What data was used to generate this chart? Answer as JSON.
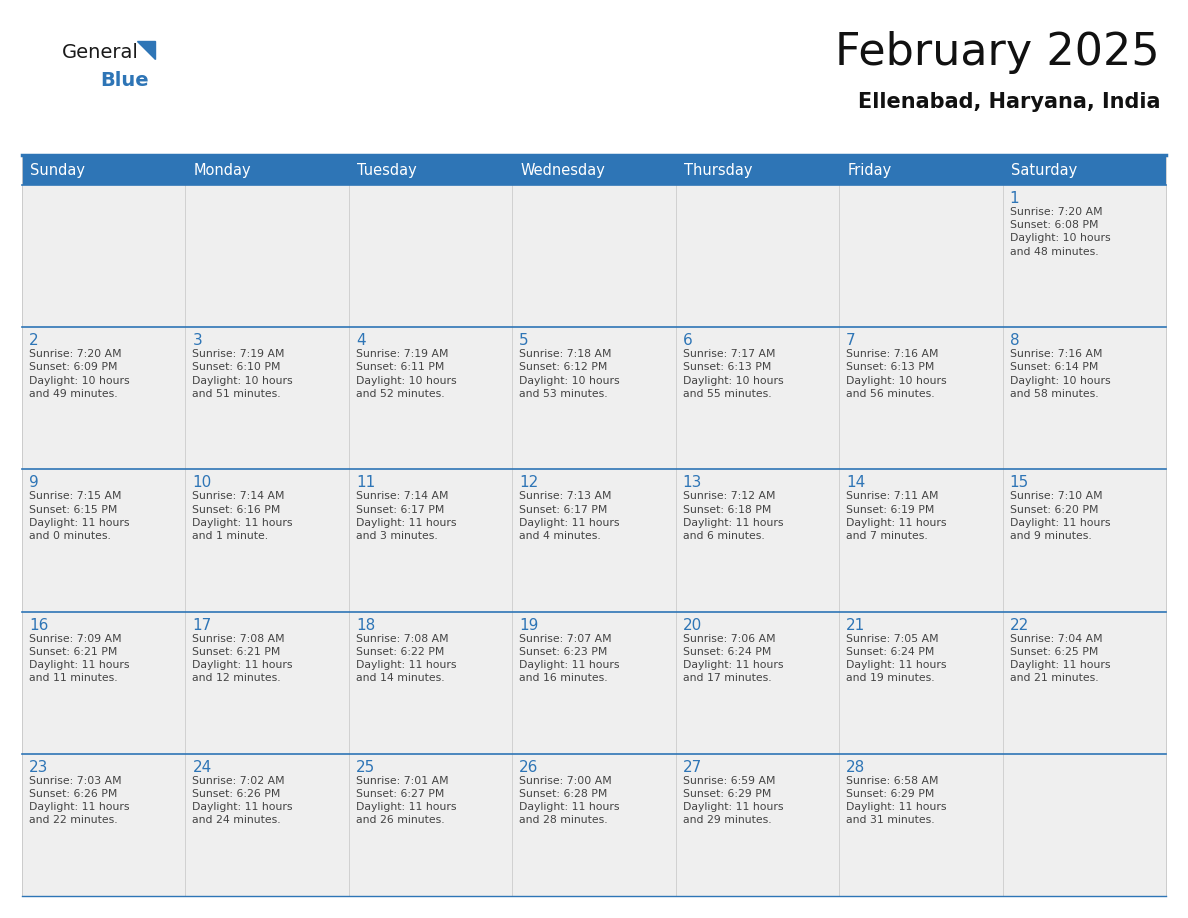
{
  "title": "February 2025",
  "subtitle": "Ellenabad, Haryana, India",
  "header_bg": "#2E75B6",
  "header_text_color": "#FFFFFF",
  "cell_bg_odd": "#EFEFEF",
  "cell_bg_even": "#FFFFFF",
  "day_number_color": "#2E75B6",
  "info_text_color": "#444444",
  "border_color": "#2E75B6",
  "sep_line_color": "#2E75B6",
  "inner_line_color": "#CCCCCC",
  "days_of_week": [
    "Sunday",
    "Monday",
    "Tuesday",
    "Wednesday",
    "Thursday",
    "Friday",
    "Saturday"
  ],
  "calendar_data": [
    [
      null,
      null,
      null,
      null,
      null,
      null,
      {
        "day": "1",
        "sunrise": "7:20 AM",
        "sunset": "6:08 PM",
        "daylight": "10 hours\nand 48 minutes."
      }
    ],
    [
      {
        "day": "2",
        "sunrise": "7:20 AM",
        "sunset": "6:09 PM",
        "daylight": "10 hours\nand 49 minutes."
      },
      {
        "day": "3",
        "sunrise": "7:19 AM",
        "sunset": "6:10 PM",
        "daylight": "10 hours\nand 51 minutes."
      },
      {
        "day": "4",
        "sunrise": "7:19 AM",
        "sunset": "6:11 PM",
        "daylight": "10 hours\nand 52 minutes."
      },
      {
        "day": "5",
        "sunrise": "7:18 AM",
        "sunset": "6:12 PM",
        "daylight": "10 hours\nand 53 minutes."
      },
      {
        "day": "6",
        "sunrise": "7:17 AM",
        "sunset": "6:13 PM",
        "daylight": "10 hours\nand 55 minutes."
      },
      {
        "day": "7",
        "sunrise": "7:16 AM",
        "sunset": "6:13 PM",
        "daylight": "10 hours\nand 56 minutes."
      },
      {
        "day": "8",
        "sunrise": "7:16 AM",
        "sunset": "6:14 PM",
        "daylight": "10 hours\nand 58 minutes."
      }
    ],
    [
      {
        "day": "9",
        "sunrise": "7:15 AM",
        "sunset": "6:15 PM",
        "daylight": "11 hours\nand 0 minutes."
      },
      {
        "day": "10",
        "sunrise": "7:14 AM",
        "sunset": "6:16 PM",
        "daylight": "11 hours\nand 1 minute."
      },
      {
        "day": "11",
        "sunrise": "7:14 AM",
        "sunset": "6:17 PM",
        "daylight": "11 hours\nand 3 minutes."
      },
      {
        "day": "12",
        "sunrise": "7:13 AM",
        "sunset": "6:17 PM",
        "daylight": "11 hours\nand 4 minutes."
      },
      {
        "day": "13",
        "sunrise": "7:12 AM",
        "sunset": "6:18 PM",
        "daylight": "11 hours\nand 6 minutes."
      },
      {
        "day": "14",
        "sunrise": "7:11 AM",
        "sunset": "6:19 PM",
        "daylight": "11 hours\nand 7 minutes."
      },
      {
        "day": "15",
        "sunrise": "7:10 AM",
        "sunset": "6:20 PM",
        "daylight": "11 hours\nand 9 minutes."
      }
    ],
    [
      {
        "day": "16",
        "sunrise": "7:09 AM",
        "sunset": "6:21 PM",
        "daylight": "11 hours\nand 11 minutes."
      },
      {
        "day": "17",
        "sunrise": "7:08 AM",
        "sunset": "6:21 PM",
        "daylight": "11 hours\nand 12 minutes."
      },
      {
        "day": "18",
        "sunrise": "7:08 AM",
        "sunset": "6:22 PM",
        "daylight": "11 hours\nand 14 minutes."
      },
      {
        "day": "19",
        "sunrise": "7:07 AM",
        "sunset": "6:23 PM",
        "daylight": "11 hours\nand 16 minutes."
      },
      {
        "day": "20",
        "sunrise": "7:06 AM",
        "sunset": "6:24 PM",
        "daylight": "11 hours\nand 17 minutes."
      },
      {
        "day": "21",
        "sunrise": "7:05 AM",
        "sunset": "6:24 PM",
        "daylight": "11 hours\nand 19 minutes."
      },
      {
        "day": "22",
        "sunrise": "7:04 AM",
        "sunset": "6:25 PM",
        "daylight": "11 hours\nand 21 minutes."
      }
    ],
    [
      {
        "day": "23",
        "sunrise": "7:03 AM",
        "sunset": "6:26 PM",
        "daylight": "11 hours\nand 22 minutes."
      },
      {
        "day": "24",
        "sunrise": "7:02 AM",
        "sunset": "6:26 PM",
        "daylight": "11 hours\nand 24 minutes."
      },
      {
        "day": "25",
        "sunrise": "7:01 AM",
        "sunset": "6:27 PM",
        "daylight": "11 hours\nand 26 minutes."
      },
      {
        "day": "26",
        "sunrise": "7:00 AM",
        "sunset": "6:28 PM",
        "daylight": "11 hours\nand 28 minutes."
      },
      {
        "day": "27",
        "sunrise": "6:59 AM",
        "sunset": "6:29 PM",
        "daylight": "11 hours\nand 29 minutes."
      },
      {
        "day": "28",
        "sunrise": "6:58 AM",
        "sunset": "6:29 PM",
        "daylight": "11 hours\nand 31 minutes."
      },
      null
    ]
  ],
  "logo_general_color": "#1a1a1a",
  "logo_blue_color": "#2E75B6",
  "logo_triangle_color": "#2E75B6",
  "fig_width": 11.88,
  "fig_height": 9.18,
  "dpi": 100,
  "title_fontsize": 32,
  "subtitle_fontsize": 15,
  "header_fontsize": 10.5,
  "day_num_fontsize": 11,
  "info_fontsize": 7.8,
  "logo_fontsize_general": 14,
  "logo_fontsize_blue": 14
}
